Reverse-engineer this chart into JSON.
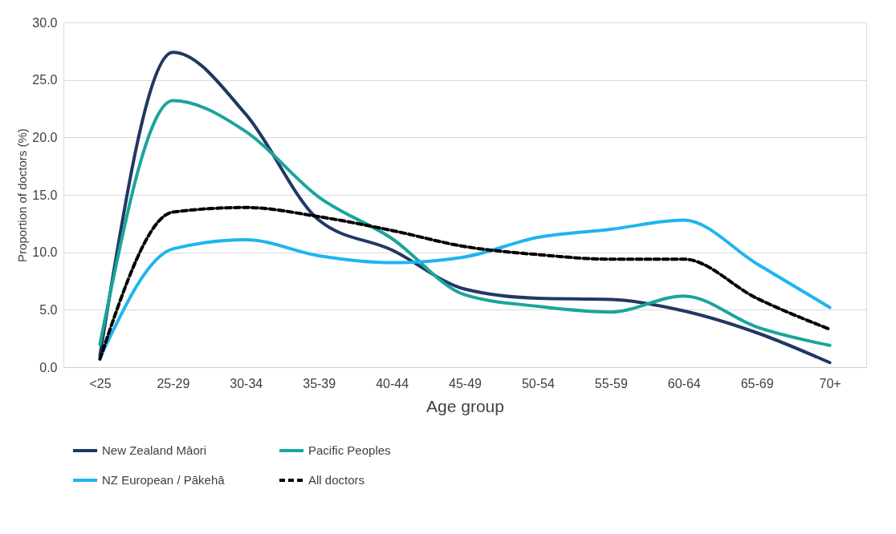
{
  "chart_data": {
    "type": "line",
    "xlabel": "Age group",
    "ylabel": "Proportion of doctors (%)",
    "categories": [
      "<25",
      "25-29",
      "30-34",
      "35-39",
      "40-44",
      "45-49",
      "50-54",
      "55-59",
      "60-64",
      "65-69",
      "70+"
    ],
    "series": [
      {
        "name": "New Zealand Māori",
        "color": "#203864",
        "line_style": "solid",
        "values": [
          1.0,
          27.4,
          22.0,
          12.8,
          10.2,
          6.8,
          6.0,
          5.9,
          4.9,
          3.0,
          0.4
        ]
      },
      {
        "name": "Pacific Peoples",
        "color": "#1aa59a",
        "line_style": "solid",
        "values": [
          2.0,
          23.2,
          20.5,
          14.8,
          11.2,
          6.3,
          5.3,
          4.8,
          6.2,
          3.5,
          1.9
        ]
      },
      {
        "name": "NZ European / Pākehā",
        "color": "#1fb4ef",
        "line_style": "solid",
        "values": [
          0.8,
          10.3,
          11.1,
          9.7,
          9.1,
          9.6,
          11.3,
          12.0,
          12.8,
          9.0,
          5.2
        ]
      },
      {
        "name": "All doctors",
        "color": "#000000",
        "line_style": "dashed",
        "values": [
          0.7,
          13.5,
          13.9,
          13.1,
          11.9,
          10.5,
          9.8,
          9.4,
          9.4,
          6.0,
          3.3
        ]
      }
    ],
    "ylim": [
      0,
      30
    ],
    "yticks": [
      {
        "value": 0,
        "label": "0.0"
      },
      {
        "value": 5,
        "label": "5.0"
      },
      {
        "value": 10,
        "label": "10.0"
      },
      {
        "value": 15,
        "label": "15.0"
      },
      {
        "value": 20,
        "label": "20.0"
      },
      {
        "value": 25,
        "label": "25.0"
      },
      {
        "value": 30,
        "label": "30.0"
      }
    ],
    "grid": "y",
    "legend": "bottom",
    "marker": "none"
  }
}
